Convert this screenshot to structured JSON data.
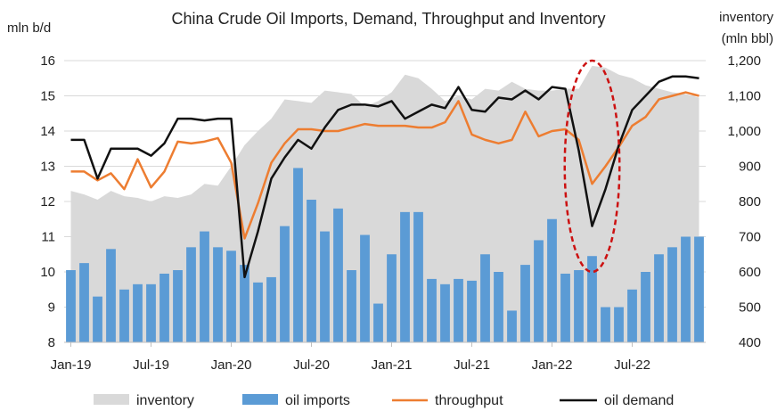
{
  "chart_data": {
    "type": "bar",
    "title": "China Crude Oil Imports, Demand, Throughput  and Inventory",
    "ylabel_left": "mln b/d",
    "ylabel_right_line1": "inventory",
    "ylabel_right_line2": "(mln bbl)",
    "ylim_left": [
      8,
      16
    ],
    "ylim_right": [
      400,
      1200
    ],
    "yticks_left": [
      "8",
      "9",
      "10",
      "11",
      "12",
      "13",
      "14",
      "15",
      "16"
    ],
    "yticks_right": [
      "400",
      "500",
      "600",
      "700",
      "800",
      "900",
      "1,000",
      "1,100",
      "1,200"
    ],
    "xticks": [
      "Jan-19",
      "Jul-19",
      "Jan-20",
      "Jul-20",
      "Jan-21",
      "Jul-21",
      "Jan-22",
      "Jul-22"
    ],
    "grid": true,
    "legend_position": "bottom",
    "colors": {
      "inventory": "#d9d9d9",
      "oil_imports": "#5b9bd5",
      "throughput": "#ed7d31",
      "oil_demand": "#111111",
      "highlight": "#cc1111"
    },
    "series": [
      {
        "name": "inventory",
        "kind": "area",
        "axis": "right",
        "values": [
          830,
          820,
          805,
          830,
          815,
          810,
          800,
          815,
          810,
          820,
          850,
          845,
          900,
          960,
          1000,
          1035,
          1090,
          1085,
          1080,
          1115,
          1110,
          1105,
          1070,
          1085,
          1110,
          1160,
          1150,
          1120,
          1085,
          1100,
          1090,
          1120,
          1115,
          1140,
          1120,
          1115,
          1115,
          1120,
          1120,
          1185,
          1180,
          1160,
          1150,
          1130,
          1120,
          1110,
          1105,
          1095
        ]
      },
      {
        "name": "oil imports",
        "kind": "bar",
        "axis": "left",
        "values": [
          10.05,
          10.25,
          9.3,
          10.65,
          9.5,
          9.65,
          9.65,
          9.95,
          10.05,
          10.7,
          11.15,
          10.7,
          10.6,
          10.2,
          9.7,
          9.85,
          11.3,
          12.95,
          12.05,
          11.15,
          11.8,
          10.05,
          11.05,
          9.1,
          10.5,
          11.7,
          11.7,
          9.8,
          9.65,
          9.8,
          9.75,
          10.5,
          10.0,
          8.9,
          10.2,
          10.9,
          11.5,
          9.95,
          10.05,
          10.45,
          9.0,
          9.0,
          9.5,
          10.0,
          10.5,
          10.7,
          11.0,
          11.0
        ]
      },
      {
        "name": "throughput",
        "kind": "line",
        "axis": "left",
        "values": [
          12.85,
          12.85,
          12.6,
          12.8,
          12.35,
          13.2,
          12.4,
          12.85,
          13.7,
          13.65,
          13.7,
          13.8,
          13.1,
          10.95,
          11.95,
          13.1,
          13.65,
          14.05,
          14.05,
          14.0,
          14.0,
          14.1,
          14.2,
          14.15,
          14.15,
          14.15,
          14.1,
          14.1,
          14.25,
          14.85,
          13.9,
          13.75,
          13.65,
          13.75,
          14.55,
          13.85,
          14.0,
          14.05,
          13.75,
          12.5,
          13.0,
          13.55,
          14.15,
          14.4,
          14.9,
          15.0,
          15.1,
          15.0
        ]
      },
      {
        "name": "oil demand",
        "kind": "line",
        "axis": "left",
        "values": [
          13.75,
          13.75,
          12.65,
          13.5,
          13.5,
          13.5,
          13.3,
          13.65,
          14.35,
          14.35,
          14.3,
          14.35,
          14.35,
          9.85,
          11.15,
          12.65,
          13.25,
          13.75,
          13.5,
          14.1,
          14.6,
          14.75,
          14.75,
          14.7,
          14.85,
          14.35,
          14.55,
          14.75,
          14.65,
          15.25,
          14.6,
          14.55,
          14.95,
          14.9,
          15.15,
          14.9,
          15.25,
          15.2,
          13.45,
          11.3,
          12.35,
          13.6,
          14.6,
          15.0,
          15.4,
          15.55,
          15.55,
          15.5
        ]
      }
    ],
    "highlight_ellipse": {
      "x_index_center": 39,
      "y_value_min": 10.0,
      "y_value_max": 16.0
    }
  },
  "legend": {
    "inventory": "inventory",
    "oil_imports": "oil imports",
    "throughput": "throughput",
    "oil_demand": "oil demand"
  }
}
